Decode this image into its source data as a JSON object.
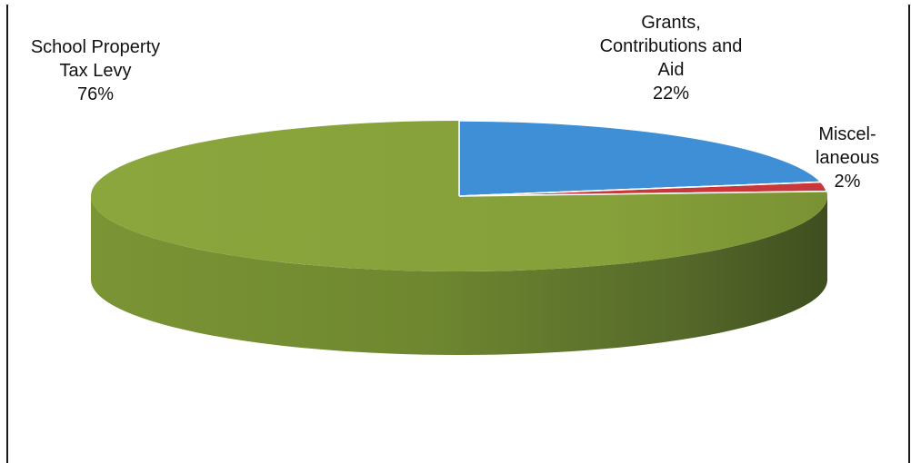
{
  "chart_data": {
    "type": "pie",
    "style": "3d",
    "title": "",
    "slices": [
      {
        "label_lines": [
          "Grants,",
          "Contributions and",
          "Aid"
        ],
        "percent_label": "22%",
        "value": 22,
        "color": "#3f8fd6"
      },
      {
        "label_lines": [
          "Miscel-",
          "laneous"
        ],
        "percent_label": "2%",
        "value": 2,
        "color": "#c8383a"
      },
      {
        "label_lines": [
          "School Property",
          "Tax Levy"
        ],
        "percent_label": "76%",
        "value": 76,
        "color": "#86a03a"
      }
    ],
    "legend": "none"
  },
  "colors": {
    "frame_border": "#1a1a1a",
    "slice_edge": "#ffffff"
  }
}
